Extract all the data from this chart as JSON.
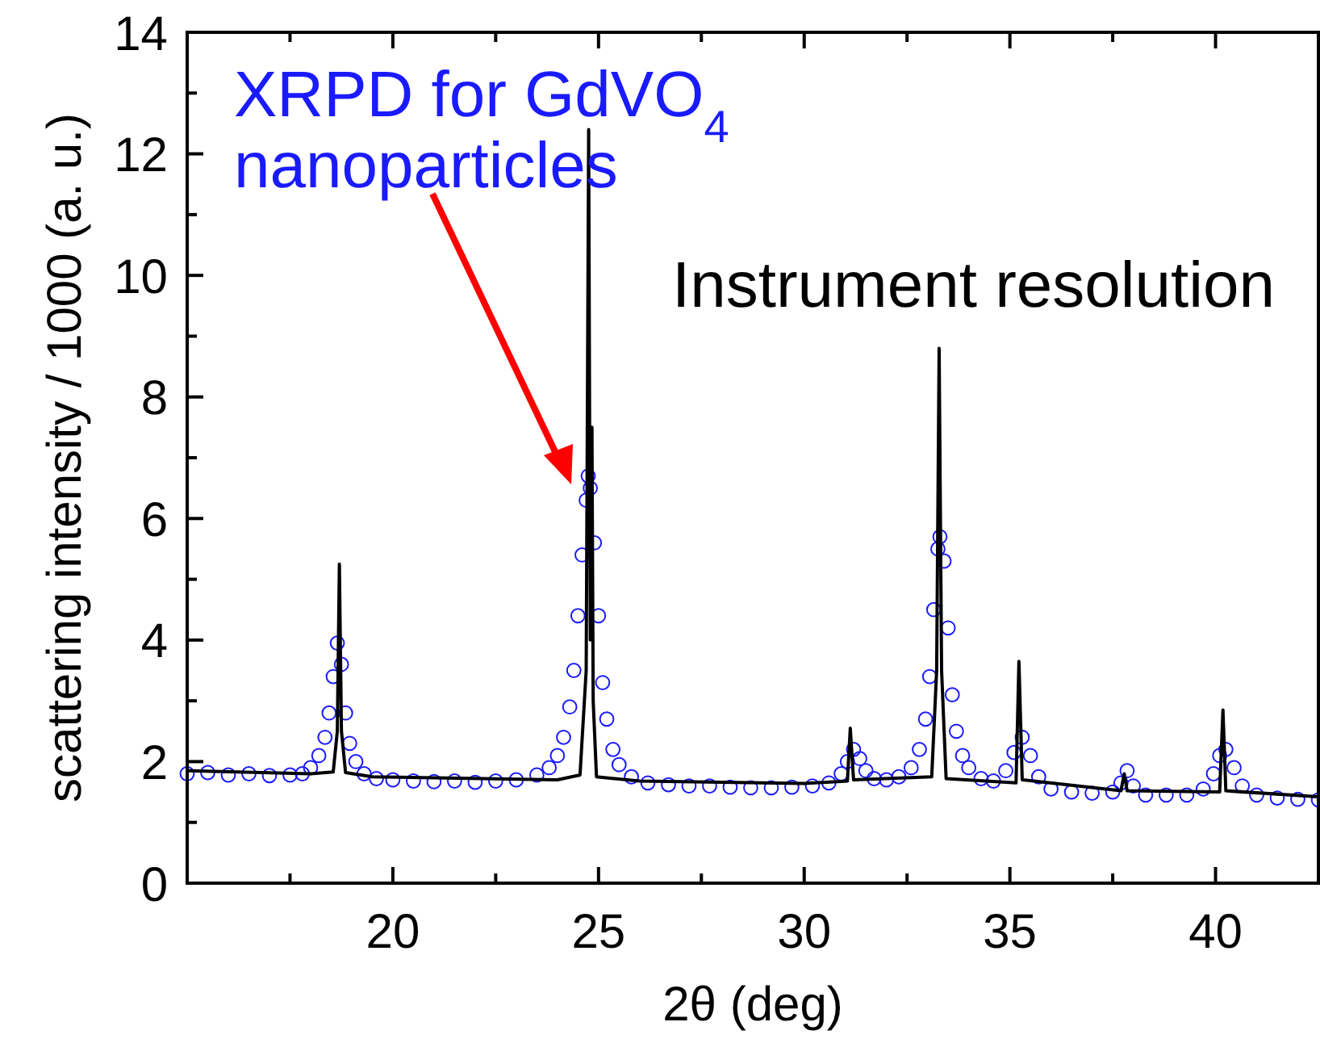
{
  "chart_data": {
    "type": "scatter",
    "xlabel": "2θ (deg)",
    "ylabel": "scattering intensity / 1000 (a. u.)",
    "xlim": [
      15,
      42.5
    ],
    "ylim": [
      0,
      14
    ],
    "xticks": [
      {
        "value": 17.5,
        "label": null
      },
      20,
      {
        "value": 22.5,
        "label": null
      },
      25,
      {
        "value": 27.5,
        "label": null
      },
      30,
      {
        "value": 32.5,
        "label": null
      },
      35,
      {
        "value": 37.5,
        "label": null
      },
      40
    ],
    "yticks": [
      0,
      {
        "value": 1,
        "label": null
      },
      2,
      {
        "value": 3,
        "label": null
      },
      4,
      {
        "value": 5,
        "label": null
      },
      6,
      {
        "value": 7,
        "label": null
      },
      8,
      {
        "value": 9,
        "label": null
      },
      10,
      {
        "value": 11,
        "label": null
      },
      12,
      {
        "value": 13,
        "label": null
      },
      14
    ],
    "series": [
      {
        "name": "XRPD for GdVO$_{4}$ nanoparticles",
        "marker": "circle",
        "color": "#1a1aff",
        "x": [
          15,
          15.5,
          16,
          16.5,
          17,
          17.5,
          17.8,
          18,
          18.2,
          18.35,
          18.45,
          18.55,
          18.65,
          18.75,
          18.85,
          18.95,
          19.1,
          19.3,
          19.6,
          20,
          20.5,
          21,
          21.5,
          22,
          22.5,
          23,
          23.5,
          23.8,
          24,
          24.15,
          24.3,
          24.4,
          24.5,
          24.6,
          24.7,
          24.75,
          24.8,
          24.9,
          25,
          25.1,
          25.2,
          25.35,
          25.5,
          25.8,
          26.2,
          26.7,
          27.2,
          27.7,
          28.2,
          28.7,
          29.2,
          29.7,
          30.2,
          30.6,
          30.9,
          31.05,
          31.2,
          31.35,
          31.5,
          31.7,
          32,
          32.3,
          32.6,
          32.8,
          32.95,
          33.05,
          33.15,
          33.25,
          33.3,
          33.4,
          33.5,
          33.6,
          33.7,
          33.85,
          34,
          34.3,
          34.6,
          34.9,
          35.1,
          35.3,
          35.5,
          35.7,
          36,
          36.5,
          37,
          37.5,
          37.7,
          37.85,
          38,
          38.3,
          38.8,
          39.3,
          39.7,
          39.95,
          40.1,
          40.25,
          40.45,
          40.65,
          41,
          41.5,
          42,
          42.5
        ],
        "values": [
          1.8,
          1.82,
          1.78,
          1.8,
          1.77,
          1.78,
          1.8,
          1.9,
          2.1,
          2.4,
          2.8,
          3.4,
          3.95,
          3.6,
          2.8,
          2.3,
          2.0,
          1.8,
          1.72,
          1.7,
          1.68,
          1.67,
          1.68,
          1.66,
          1.68,
          1.7,
          1.78,
          1.9,
          2.1,
          2.4,
          2.9,
          3.5,
          4.4,
          5.4,
          6.3,
          6.7,
          6.5,
          5.6,
          4.4,
          3.3,
          2.7,
          2.2,
          1.95,
          1.75,
          1.65,
          1.62,
          1.6,
          1.6,
          1.58,
          1.57,
          1.57,
          1.58,
          1.6,
          1.65,
          1.8,
          2.0,
          2.2,
          2.05,
          1.85,
          1.72,
          1.7,
          1.75,
          1.9,
          2.2,
          2.7,
          3.4,
          4.5,
          5.5,
          5.7,
          5.3,
          4.2,
          3.1,
          2.5,
          2.1,
          1.9,
          1.72,
          1.68,
          1.85,
          2.15,
          2.4,
          2.1,
          1.75,
          1.55,
          1.5,
          1.48,
          1.5,
          1.65,
          1.85,
          1.6,
          1.45,
          1.45,
          1.45,
          1.55,
          1.8,
          2.1,
          2.2,
          1.9,
          1.6,
          1.45,
          1.4,
          1.38,
          1.37
        ]
      },
      {
        "name": "Instrument resolution",
        "type": "line",
        "marker": "none",
        "color": "#000000",
        "x": [
          15,
          18,
          18.55,
          18.65,
          18.7,
          18.75,
          18.85,
          19.5,
          24,
          24.55,
          24.7,
          24.76,
          24.8,
          24.84,
          24.87,
          24.95,
          26,
          30,
          31.05,
          31.12,
          31.2,
          33.1,
          33.22,
          33.28,
          33.34,
          33.45,
          35.15,
          35.22,
          35.3,
          37.7,
          37.78,
          37.85,
          40.1,
          40.18,
          40.25,
          42.5
        ],
        "values": [
          1.85,
          1.8,
          1.83,
          2.5,
          5.25,
          2.5,
          1.82,
          1.75,
          1.7,
          1.78,
          3.5,
          12.4,
          4,
          7.5,
          3,
          1.75,
          1.68,
          1.64,
          1.68,
          2.55,
          1.7,
          1.75,
          3.5,
          8.8,
          3.5,
          1.72,
          1.65,
          3.65,
          1.7,
          1.52,
          1.8,
          1.52,
          1.5,
          2.85,
          1.52,
          1.42
        ]
      }
    ]
  }
}
